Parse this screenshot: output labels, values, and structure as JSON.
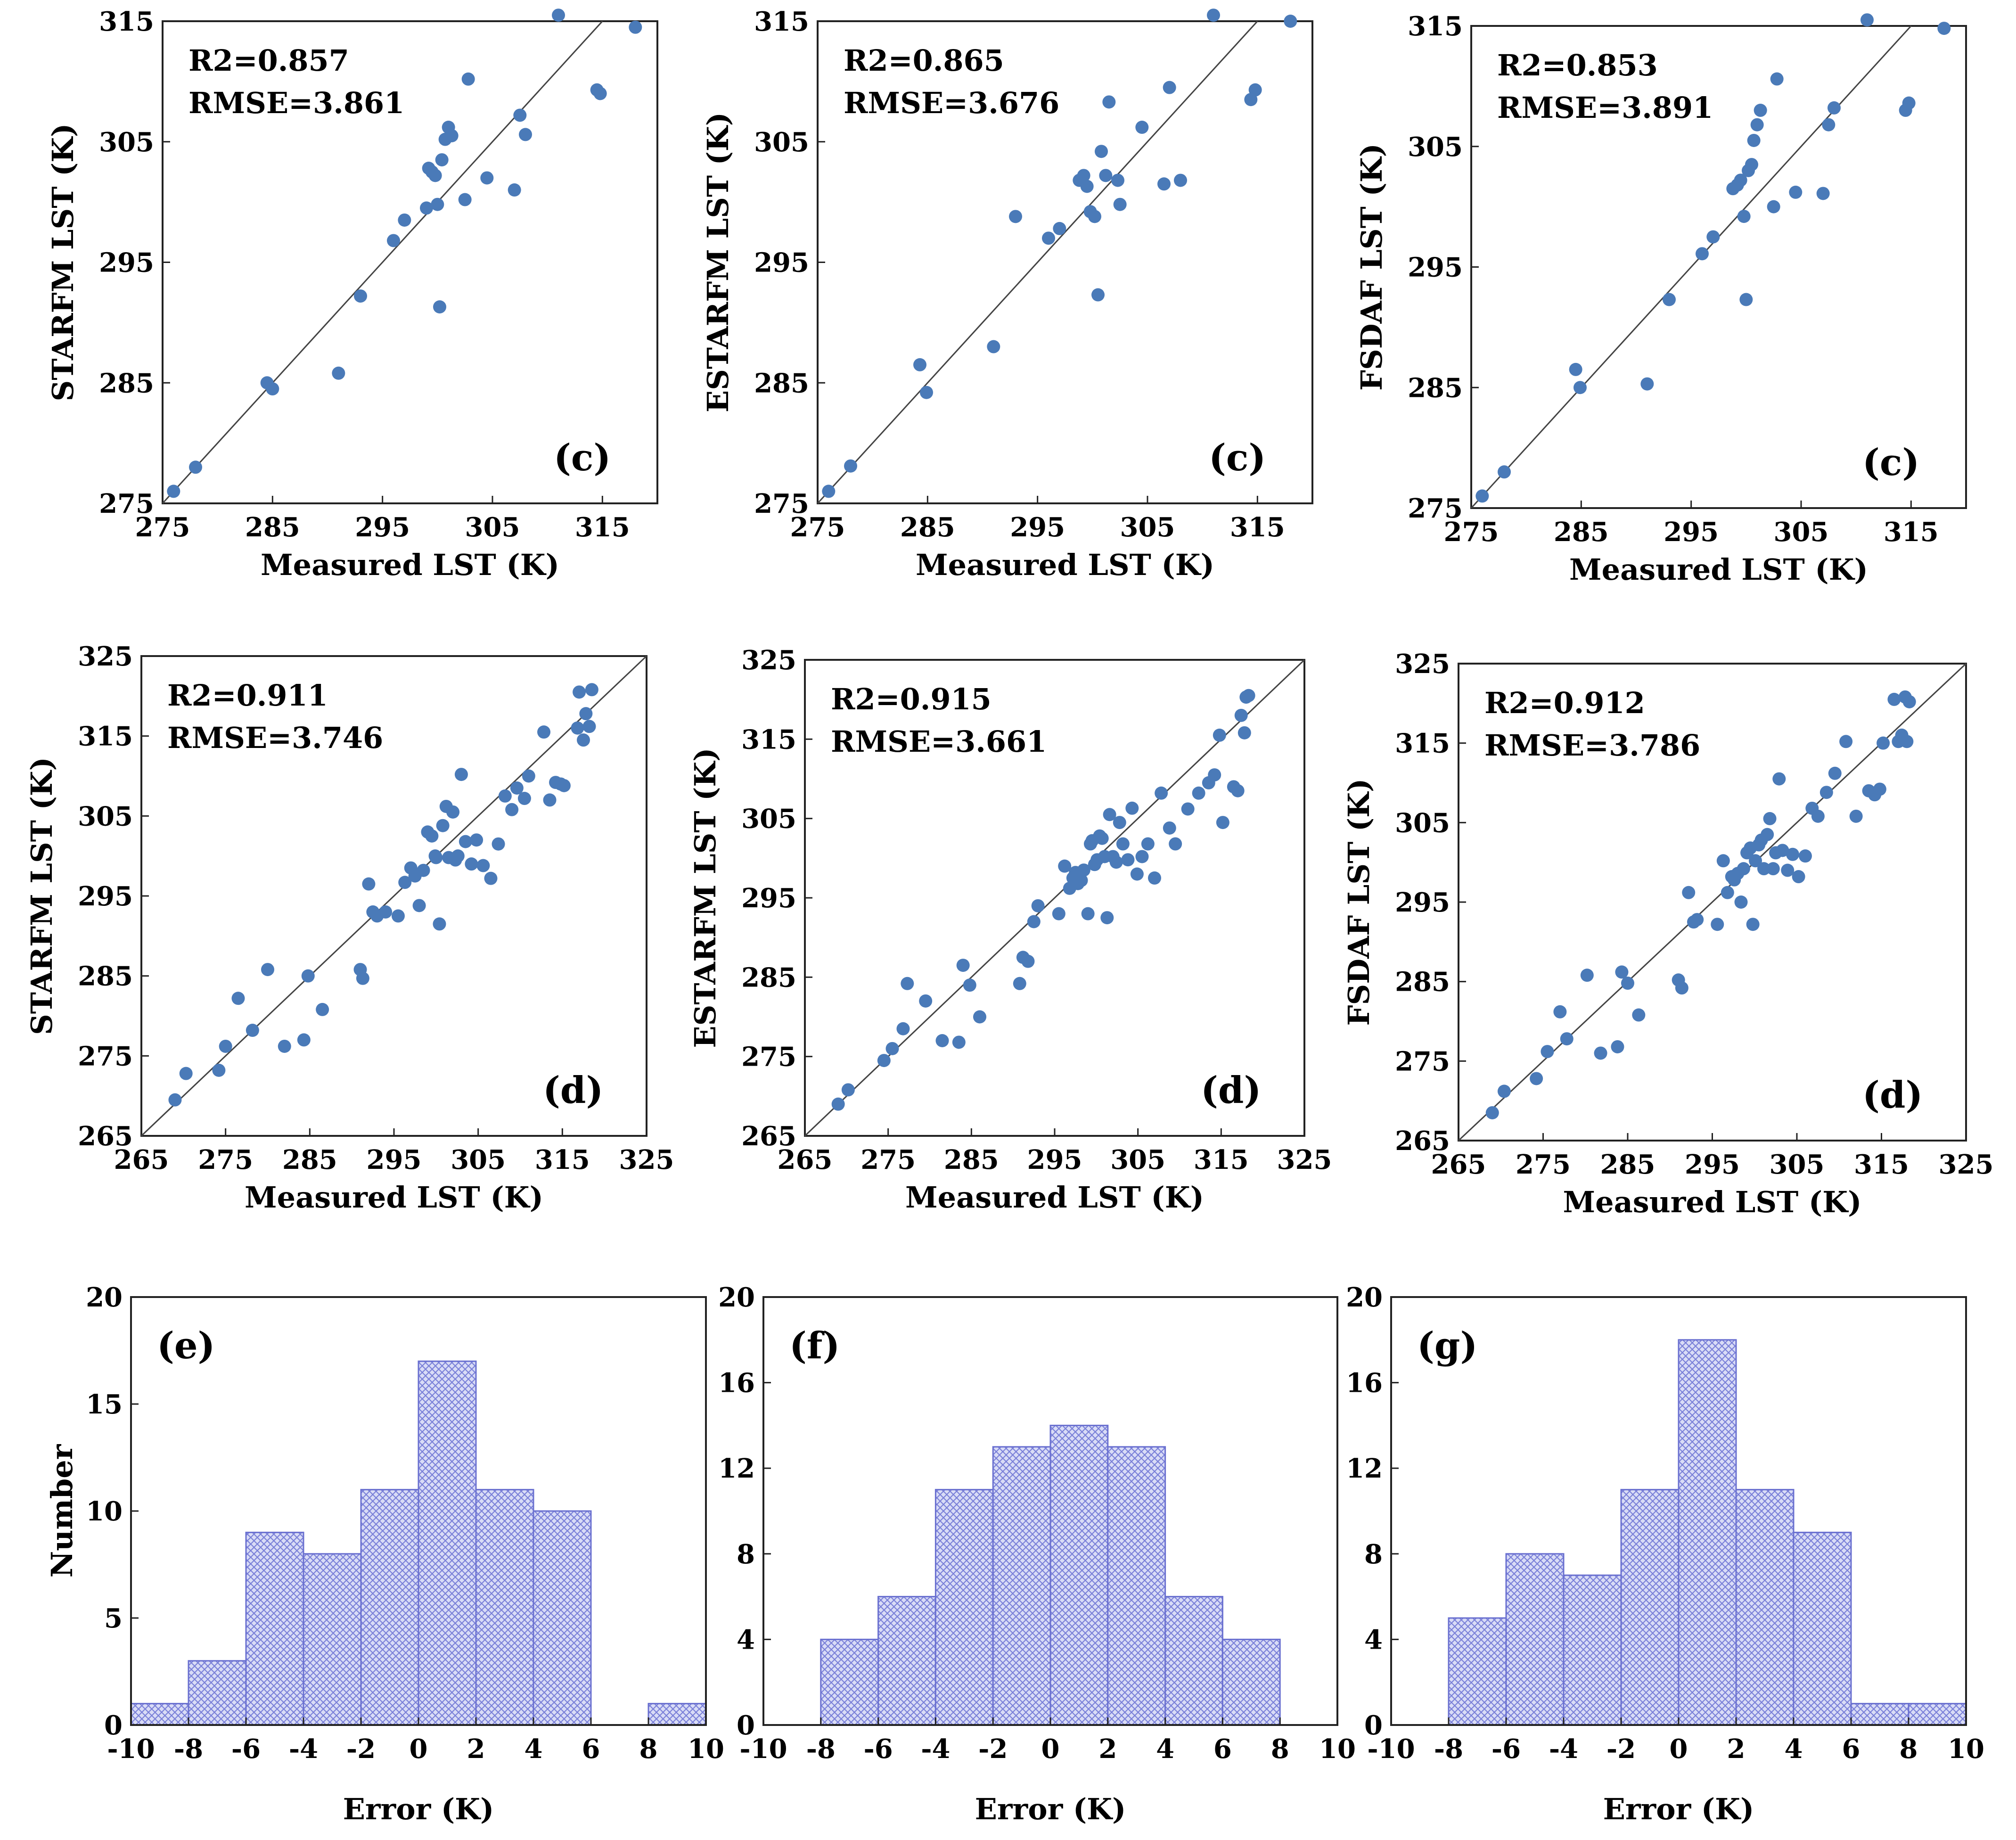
{
  "styles": {
    "point_color": "#4a7ab8",
    "bar_fill": "#d9dcf6",
    "bar_hatch": "#7a80d8",
    "bar_edge": "#6a70d0",
    "frame": "#222222",
    "identity_line": "#444444"
  },
  "chart_data": [
    {
      "type": "scatter",
      "panel_label": "(c)",
      "r2": "R2=0.857",
      "rmse": "RMSE=3.861",
      "xlabel": "Measured LST (K)",
      "ylabel": "STARFM LST (K)",
      "xlim": [
        275,
        320
      ],
      "ylim": [
        275,
        315
      ],
      "xticks": [
        275,
        285,
        295,
        305,
        315
      ],
      "yticks": [
        275,
        285,
        295,
        305,
        315
      ],
      "x": [
        276,
        278,
        284.5,
        285,
        291,
        293,
        296,
        297,
        299,
        299.2,
        299.5,
        299.8,
        300,
        300.2,
        300.4,
        300.7,
        301,
        301.3,
        302.5,
        302.8,
        304.5,
        307,
        307.5,
        308,
        311,
        314.5,
        314.8,
        318
      ],
      "y": [
        276,
        278,
        285,
        284.5,
        285.8,
        292.2,
        296.8,
        298.5,
        299.5,
        302.8,
        302.5,
        302.2,
        299.8,
        291.3,
        303.5,
        305.2,
        306.2,
        305.5,
        300.2,
        310.2,
        302,
        301,
        307.2,
        305.6,
        315.5,
        309.3,
        309,
        314.5
      ]
    },
    {
      "type": "scatter",
      "panel_label": "(c)",
      "r2": "R2=0.865",
      "rmse": "RMSE=3.676",
      "xlabel": "Measured LST (K)",
      "ylabel": "ESTARFM LST (K)",
      "xlim": [
        275,
        320
      ],
      "ylim": [
        275,
        315
      ],
      "xticks": [
        275,
        285,
        295,
        305,
        315
      ],
      "yticks": [
        275,
        285,
        295,
        305,
        315
      ],
      "x": [
        276,
        278,
        284.3,
        284.9,
        291,
        293,
        296,
        297,
        298.8,
        299.2,
        299.5,
        299.8,
        300.2,
        300.5,
        300.8,
        301.2,
        301.5,
        302.3,
        302.5,
        304.5,
        306.5,
        307,
        308,
        311,
        314.4,
        314.8,
        318
      ],
      "y": [
        276,
        278.1,
        286.5,
        284.2,
        288,
        298.8,
        297,
        297.8,
        301.8,
        302.2,
        301.3,
        299.2,
        298.8,
        292.3,
        304.2,
        302.2,
        308.3,
        301.8,
        299.8,
        306.2,
        301.5,
        309.5,
        301.8,
        315.5,
        308.5,
        309.3,
        315
      ]
    },
    {
      "type": "scatter",
      "panel_label": "(c)",
      "r2": "R2=0.853",
      "rmse": "RMSE=3.891",
      "xlabel": "Measured LST (K)",
      "ylabel": "FSDAF LST (K)",
      "xlim": [
        275,
        320
      ],
      "ylim": [
        275,
        315
      ],
      "xticks": [
        275,
        285,
        295,
        305,
        315
      ],
      "yticks": [
        275,
        285,
        295,
        305,
        315
      ],
      "x": [
        276,
        278,
        284.5,
        284.9,
        291,
        293,
        296,
        297,
        298.8,
        299.2,
        299.5,
        299.8,
        300,
        300.2,
        300.5,
        300.7,
        301,
        301.3,
        302.5,
        302.8,
        304.5,
        307,
        307.5,
        308,
        311,
        314.5,
        314.8,
        318
      ],
      "y": [
        276,
        278,
        286.5,
        285,
        285.3,
        292.3,
        296.1,
        297.5,
        301.5,
        301.8,
        302.2,
        299.2,
        292.3,
        303,
        303.5,
        305.5,
        306.8,
        308,
        300,
        310.6,
        301.2,
        301.1,
        306.8,
        308.2,
        315.5,
        308,
        308.6,
        314.8
      ]
    },
    {
      "type": "scatter",
      "panel_label": "(d)",
      "r2": "R2=0.911",
      "rmse": "RMSE=3.746",
      "xlabel": "Measured LST (K)",
      "ylabel": "STARFM LST (K)",
      "xlim": [
        265,
        325
      ],
      "ylim": [
        265,
        325
      ],
      "xticks": [
        265,
        275,
        285,
        295,
        305,
        315,
        325
      ],
      "yticks": [
        265,
        275,
        285,
        295,
        305,
        315,
        325
      ],
      "x": [
        269,
        270.3,
        274.2,
        275,
        276.5,
        278.2,
        280,
        282,
        284.3,
        284.8,
        286.5,
        291,
        291.3,
        292,
        292.5,
        293,
        294,
        295.5,
        296.3,
        297,
        297.5,
        298,
        298.5,
        299,
        299.5,
        299.9,
        300,
        300.4,
        300.8,
        301.2,
        301.5,
        302,
        302.3,
        302.6,
        303,
        303.5,
        304.2,
        304.8,
        305.6,
        306.5,
        307.4,
        308.2,
        309,
        309.6,
        310.5,
        311,
        312.8,
        313.5,
        314.2,
        314.8,
        315.2,
        316.8,
        317,
        317.5,
        317.8,
        318.2,
        318.5
      ],
      "y": [
        269.5,
        272.8,
        273.2,
        276.2,
        282.2,
        278.2,
        285.8,
        276.2,
        277,
        285,
        280.8,
        285.8,
        284.7,
        296.5,
        293,
        292.5,
        293,
        292.5,
        296.7,
        298.5,
        297.5,
        293.8,
        298.2,
        303,
        302.5,
        300,
        299.8,
        291.5,
        303.8,
        306.2,
        299.8,
        305.5,
        299.5,
        300,
        310.2,
        301.8,
        299,
        302,
        298.8,
        297.2,
        301.5,
        307.5,
        305.8,
        308.5,
        307.2,
        310,
        315.5,
        307,
        309.2,
        309,
        308.8,
        316,
        320.5,
        314.5,
        317.8,
        316.2,
        320.8
      ]
    },
    {
      "type": "scatter",
      "panel_label": "(d)",
      "r2": "R2=0.915",
      "rmse": "RMSE=3.661",
      "xlabel": "Measured LST (K)",
      "ylabel": "ESTARFM LST (K)",
      "xlim": [
        265,
        325
      ],
      "ylim": [
        265,
        325
      ],
      "xticks": [
        265,
        275,
        285,
        295,
        305,
        315,
        325
      ],
      "yticks": [
        265,
        275,
        285,
        295,
        305,
        315,
        325
      ],
      "x": [
        269,
        270.2,
        274.5,
        275.5,
        276.8,
        277.3,
        279.5,
        281.5,
        283.5,
        284,
        284.8,
        286,
        290.8,
        291.2,
        291.8,
        292.5,
        293,
        295.5,
        296.2,
        296.8,
        297.2,
        297.5,
        297.8,
        298.2,
        298.5,
        299,
        299.3,
        299.5,
        299.8,
        300.1,
        300.4,
        300.7,
        301,
        301.3,
        301.6,
        302,
        302.4,
        302.8,
        303.2,
        303.8,
        304.3,
        304.9,
        305.5,
        306.2,
        307,
        307.8,
        308.8,
        309.5,
        311,
        312.3,
        313.5,
        314.2,
        314.8,
        315.2,
        316.5,
        317,
        317.4,
        317.8,
        318,
        318.3
      ],
      "y": [
        269,
        270.8,
        274.5,
        276,
        278.5,
        284.2,
        282,
        277,
        276.8,
        286.5,
        284,
        280,
        284.2,
        287.5,
        287,
        292,
        294,
        293,
        299,
        296.2,
        297.5,
        298.2,
        296.8,
        297.2,
        298.5,
        293,
        301.8,
        302.2,
        299.2,
        299.8,
        302.8,
        302.5,
        300.2,
        292.5,
        305.5,
        300.2,
        299.5,
        304.5,
        301.8,
        299.8,
        306.3,
        298,
        300.2,
        301.8,
        297.5,
        308.2,
        303.8,
        301.8,
        306.2,
        308.2,
        309.5,
        310.5,
        315.5,
        304.5,
        309,
        308.5,
        318,
        315.8,
        320.3,
        320.5
      ]
    },
    {
      "type": "scatter",
      "panel_label": "(d)",
      "r2": "R2=0.912",
      "rmse": "RMSE=3.786",
      "xlabel": "Measured LST (K)",
      "ylabel": "FSDAF LST (K)",
      "xlim": [
        265,
        325
      ],
      "ylim": [
        265,
        325
      ],
      "xticks": [
        265,
        275,
        285,
        295,
        305,
        315,
        325
      ],
      "yticks": [
        265,
        275,
        285,
        295,
        305,
        315,
        325
      ],
      "x": [
        269,
        270.4,
        274.2,
        275.5,
        277,
        277.8,
        280.2,
        281.8,
        283.8,
        284.3,
        285,
        286.3,
        291,
        291.4,
        292.2,
        292.8,
        293.2,
        295.6,
        296.3,
        296.8,
        297.3,
        297.6,
        298,
        298.4,
        298.7,
        299.1,
        299.5,
        299.8,
        300.1,
        300.5,
        300.8,
        301.1,
        301.5,
        301.8,
        302.2,
        302.5,
        302.9,
        303.3,
        303.9,
        304.5,
        305.2,
        306,
        306.8,
        307.5,
        308.5,
        309.5,
        310.8,
        312,
        313.5,
        314.2,
        314.8,
        315.2,
        316.5,
        317,
        317.4,
        317.8,
        318,
        318.3
      ],
      "y": [
        268.5,
        271.2,
        272.8,
        276.2,
        281.2,
        277.8,
        285.8,
        276,
        276.8,
        286.2,
        284.8,
        280.8,
        285.2,
        284.2,
        296.2,
        292.5,
        292.8,
        292.2,
        300.2,
        296.2,
        298.2,
        297.8,
        298.6,
        295,
        299.2,
        301.2,
        301.8,
        292.2,
        300.2,
        302.2,
        302.8,
        299.2,
        303.5,
        305.5,
        299.2,
        301.2,
        310.5,
        301.5,
        299,
        301,
        298.2,
        300.8,
        306.8,
        305.8,
        308.8,
        311.2,
        315.2,
        305.8,
        309,
        308.5,
        309.2,
        315,
        320.5,
        315.2,
        316,
        320.8,
        315.2,
        320.2
      ]
    },
    {
      "type": "bar",
      "panel_label": "(e)",
      "xlabel": "Error (K)",
      "ylabel": "Number",
      "bin_edges": [
        -10,
        -8,
        -6,
        -4,
        -2,
        0,
        2,
        4,
        6,
        8,
        10
      ],
      "values": [
        1,
        3,
        9,
        8,
        11,
        17,
        11,
        10,
        0,
        1
      ],
      "xlim": [
        -10,
        10
      ],
      "ylim": [
        0,
        20
      ],
      "xticks": [
        -10,
        -8,
        -6,
        -4,
        -2,
        0,
        2,
        4,
        6,
        8,
        10
      ],
      "yticks": [
        0,
        5,
        10,
        15,
        20
      ]
    },
    {
      "type": "bar",
      "panel_label": "(f)",
      "xlabel": "Error (K)",
      "ylabel": "",
      "bin_edges": [
        -10,
        -8,
        -6,
        -4,
        -2,
        0,
        2,
        4,
        6,
        8,
        10
      ],
      "values": [
        0,
        4,
        6,
        11,
        13,
        14,
        13,
        6,
        4,
        0
      ],
      "xlim": [
        -10,
        10
      ],
      "ylim": [
        0,
        20
      ],
      "xticks": [
        -10,
        -8,
        -6,
        -4,
        -2,
        0,
        2,
        4,
        6,
        8,
        10
      ],
      "yticks": [
        0,
        4,
        8,
        12,
        16,
        20
      ]
    },
    {
      "type": "bar",
      "panel_label": "(g)",
      "xlabel": "Error (K)",
      "ylabel": "",
      "bin_edges": [
        -10,
        -8,
        -6,
        -4,
        -2,
        0,
        2,
        4,
        6,
        8,
        10
      ],
      "values": [
        0,
        5,
        8,
        7,
        11,
        18,
        11,
        9,
        1,
        1
      ],
      "xlim": [
        -10,
        10
      ],
      "ylim": [
        0,
        20
      ],
      "xticks": [
        -10,
        -8,
        -6,
        -4,
        -2,
        0,
        2,
        4,
        6,
        8,
        10
      ],
      "yticks": [
        0,
        4,
        8,
        12,
        16,
        20
      ]
    }
  ]
}
